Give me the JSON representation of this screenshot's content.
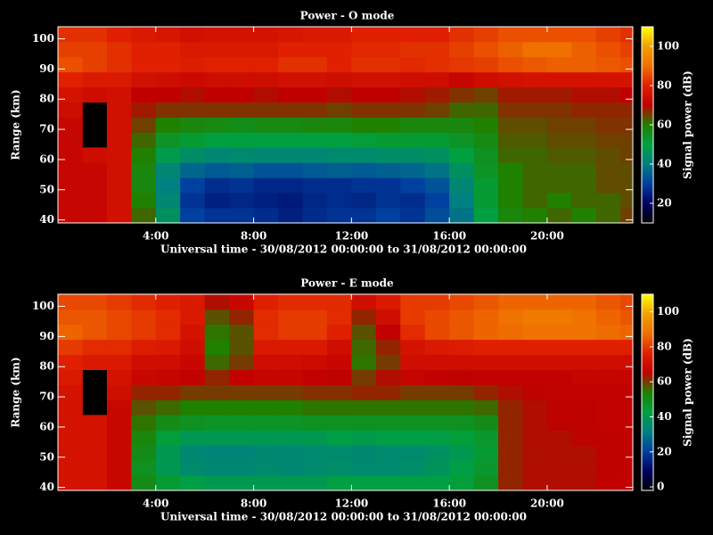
{
  "chart_data": [
    {
      "type": "heatmap",
      "title": "Power - O mode",
      "x_label": "Universal time - 30/08/2012 00:00:00 to 31/08/2012 00:00:00",
      "y_label": "Range (km)",
      "colorbar_label": "Signal power (dB)",
      "x_edges": [
        0,
        1,
        2,
        3,
        4,
        5,
        6,
        7,
        8,
        9,
        10,
        11,
        12,
        13,
        14,
        15,
        16,
        17,
        18,
        19,
        20,
        21,
        22,
        23,
        24
      ],
      "y_edges": [
        39,
        44,
        49,
        54,
        59,
        64,
        69,
        74,
        79,
        84,
        89,
        94,
        99,
        104
      ],
      "xlim": [
        0,
        23.5
      ],
      "ylim": [
        39,
        104
      ],
      "zlim": [
        10,
        110
      ],
      "xticks": [
        {
          "value": 4,
          "label": "4:00"
        },
        {
          "value": 8,
          "label": "8:00"
        },
        {
          "value": 12,
          "label": "12:00"
        },
        {
          "value": 16,
          "label": "16:00"
        },
        {
          "value": 20,
          "label": "20:00"
        }
      ],
      "yticks": [
        40,
        50,
        60,
        70,
        80,
        90,
        100
      ],
      "zticks": [
        20,
        40,
        60,
        80,
        100
      ],
      "colormap": [
        "#000000",
        "#000060",
        "#0040a0",
        "#008080",
        "#00a040",
        "#208000",
        "#c00000",
        "#e02000",
        "#f07000",
        "#f0a000",
        "#ffff00"
      ],
      "z": [
        [
          72,
          72,
          75,
          62,
          45,
          30,
          28,
          28,
          27,
          25,
          27,
          28,
          28,
          30,
          28,
          32,
          38,
          50,
          58,
          60,
          62,
          60,
          62,
          65
        ],
        [
          72,
          72,
          75,
          60,
          42,
          28,
          25,
          26,
          25,
          24,
          26,
          27,
          26,
          28,
          27,
          30,
          40,
          52,
          60,
          62,
          60,
          62,
          62,
          64
        ],
        [
          72,
          72,
          75,
          58,
          40,
          30,
          27,
          28,
          26,
          26,
          27,
          27,
          28,
          28,
          30,
          33,
          42,
          52,
          60,
          62,
          62,
          62,
          64,
          64
        ],
        [
          72,
          72,
          75,
          58,
          42,
          36,
          34,
          35,
          33,
          33,
          34,
          35,
          34,
          35,
          36,
          38,
          45,
          54,
          60,
          62,
          62,
          62,
          64,
          64
        ],
        [
          72,
          74,
          75,
          60,
          48,
          44,
          42,
          43,
          42,
          42,
          42,
          43,
          43,
          44,
          44,
          45,
          50,
          55,
          62,
          62,
          63,
          63,
          64,
          65
        ],
        [
          72,
          null,
          75,
          62,
          54,
          52,
          50,
          50,
          50,
          50,
          50,
          50,
          51,
          52,
          52,
          52,
          54,
          57,
          63,
          63,
          64,
          64,
          65,
          65
        ],
        [
          72,
          null,
          75,
          65,
          60,
          58,
          57,
          56,
          57,
          57,
          58,
          58,
          60,
          60,
          58,
          58,
          58,
          60,
          64,
          64,
          65,
          65,
          66,
          66
        ],
        [
          74,
          null,
          75,
          68,
          66,
          66,
          66,
          66,
          66,
          66,
          66,
          65,
          66,
          66,
          66,
          65,
          62,
          62,
          66,
          66,
          66,
          67,
          67,
          67
        ],
        [
          76,
          74,
          75,
          70,
          70,
          69,
          70,
          70,
          69,
          70,
          70,
          69,
          70,
          70,
          69,
          68,
          66,
          65,
          68,
          68,
          68,
          69,
          69,
          70
        ],
        [
          80,
          78,
          78,
          75,
          74,
          73,
          74,
          74,
          74,
          75,
          75,
          74,
          75,
          75,
          74,
          74,
          72,
          74,
          75,
          76,
          76,
          76,
          76,
          76
        ],
        [
          86,
          84,
          82,
          80,
          80,
          79,
          80,
          80,
          80,
          82,
          82,
          80,
          82,
          82,
          81,
          82,
          83,
          84,
          86,
          87,
          88,
          88,
          87,
          86
        ],
        [
          84,
          84,
          82,
          80,
          80,
          78,
          78,
          78,
          78,
          80,
          80,
          80,
          81,
          81,
          82,
          82,
          84,
          86,
          88,
          90,
          90,
          88,
          86,
          84
        ],
        [
          82,
          82,
          80,
          78,
          77,
          75,
          76,
          76,
          76,
          77,
          78,
          78,
          80,
          80,
          80,
          80,
          82,
          84,
          86,
          86,
          86,
          86,
          84,
          82
        ]
      ]
    },
    {
      "type": "heatmap",
      "title": "Power - E mode",
      "x_label": "Universal time - 30/08/2012 00:00:00 to 31/08/2012 00:00:00",
      "y_label": "Range (km)",
      "colorbar_label": "Signal power (dB)",
      "x_edges": [
        0,
        1,
        2,
        3,
        4,
        5,
        6,
        7,
        8,
        9,
        10,
        11,
        12,
        13,
        14,
        15,
        16,
        17,
        18,
        19,
        20,
        21,
        22,
        23,
        24
      ],
      "y_edges": [
        39,
        44,
        49,
        54,
        59,
        64,
        69,
        74,
        79,
        84,
        89,
        94,
        99,
        104
      ],
      "xlim": [
        0,
        23.5
      ],
      "ylim": [
        39,
        104
      ],
      "zlim": [
        -2,
        110
      ],
      "xticks": [
        {
          "value": 4,
          "label": "4:00"
        },
        {
          "value": 8,
          "label": "8:00"
        },
        {
          "value": 12,
          "label": "12:00"
        },
        {
          "value": 16,
          "label": "16:00"
        },
        {
          "value": 20,
          "label": "20:00"
        }
      ],
      "yticks": [
        40,
        50,
        60,
        70,
        80,
        90,
        100
      ],
      "zticks": [
        0,
        20,
        40,
        60,
        80,
        100
      ],
      "colormap": [
        "#000000",
        "#000060",
        "#0040a0",
        "#008080",
        "#00a040",
        "#208000",
        "#c00000",
        "#e02000",
        "#f07000",
        "#f0a000",
        "#ffff00"
      ],
      "z": [
        [
          72,
          72,
          68,
          50,
          45,
          42,
          40,
          40,
          40,
          40,
          40,
          42,
          42,
          42,
          42,
          42,
          44,
          48,
          62,
          64,
          64,
          64,
          66,
          66
        ],
        [
          72,
          72,
          68,
          48,
          40,
          35,
          34,
          34,
          35,
          34,
          35,
          36,
          35,
          35,
          36,
          38,
          42,
          46,
          62,
          64,
          64,
          64,
          65,
          66
        ],
        [
          72,
          72,
          68,
          50,
          40,
          34,
          33,
          33,
          34,
          34,
          35,
          35,
          34,
          35,
          35,
          37,
          40,
          45,
          62,
          64,
          64,
          64,
          65,
          66
        ],
        [
          72,
          72,
          68,
          52,
          44,
          40,
          40,
          40,
          40,
          40,
          40,
          42,
          41,
          42,
          42,
          42,
          44,
          46,
          62,
          64,
          64,
          65,
          65,
          66
        ],
        [
          72,
          72,
          68,
          55,
          50,
          48,
          47,
          47,
          47,
          47,
          48,
          48,
          48,
          48,
          48,
          48,
          48,
          50,
          62,
          64,
          65,
          65,
          66,
          66
        ],
        [
          72,
          null,
          68,
          58,
          56,
          54,
          54,
          54,
          54,
          54,
          55,
          55,
          55,
          55,
          55,
          55,
          55,
          56,
          62,
          64,
          65,
          65,
          66,
          66
        ],
        [
          72,
          null,
          70,
          62,
          62,
          60,
          60,
          60,
          60,
          60,
          61,
          61,
          62,
          62,
          60,
          60,
          60,
          62,
          64,
          65,
          66,
          66,
          66,
          66
        ],
        [
          74,
          null,
          72,
          68,
          67,
          66,
          62,
          66,
          67,
          67,
          66,
          65,
          60,
          64,
          67,
          66,
          65,
          66,
          66,
          66,
          66,
          67,
          67,
          67
        ],
        [
          76,
          74,
          74,
          70,
          70,
          68,
          56,
          60,
          70,
          70,
          69,
          68,
          55,
          60,
          70,
          70,
          70,
          70,
          70,
          70,
          70,
          70,
          70,
          70
        ],
        [
          80,
          78,
          78,
          75,
          74,
          70,
          54,
          58,
          74,
          74,
          74,
          70,
          56,
          62,
          72,
          74,
          75,
          76,
          76,
          76,
          76,
          76,
          76,
          76
        ],
        [
          86,
          84,
          82,
          80,
          78,
          72,
          55,
          58,
          78,
          80,
          80,
          76,
          58,
          66,
          78,
          82,
          84,
          86,
          87,
          88,
          88,
          88,
          87,
          86
        ],
        [
          84,
          84,
          82,
          80,
          78,
          74,
          58,
          62,
          78,
          80,
          80,
          78,
          62,
          70,
          80,
          82,
          84,
          86,
          88,
          90,
          90,
          88,
          86,
          84
        ],
        [
          82,
          82,
          80,
          78,
          76,
          74,
          64,
          68,
          76,
          78,
          78,
          78,
          70,
          74,
          80,
          80,
          82,
          84,
          86,
          86,
          86,
          86,
          84,
          82
        ]
      ]
    }
  ]
}
